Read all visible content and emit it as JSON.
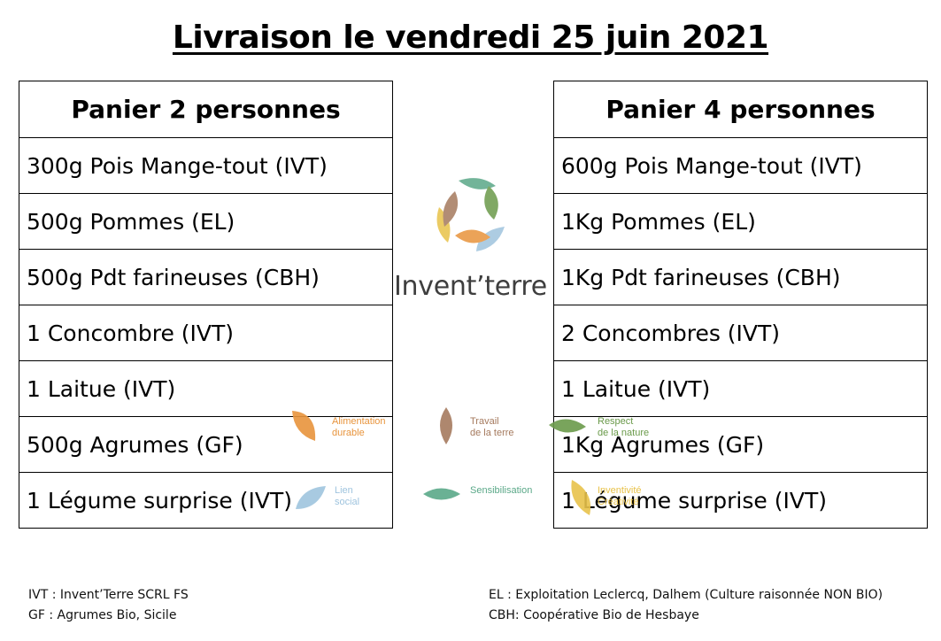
{
  "title": "Livraison le vendredi 25 juin 2021",
  "panier2": {
    "header": "Panier 2 personnes",
    "items": [
      "300g Pois Mange-tout (IVT)",
      "500g Pommes (EL)",
      "500g Pdt farineuses (CBH)",
      "1 Concombre (IVT)",
      "1 Laitue (IVT)",
      "500g Agrumes (GF)",
      "1 Légume surprise (IVT)"
    ]
  },
  "panier4": {
    "header": "Panier 4 personnes",
    "items": [
      "600g Pois Mange-tout (IVT)",
      "1Kg Pommes (EL)",
      "1Kg Pdt farineuses (CBH)",
      "2 Concombres (IVT)",
      "1 Laitue (IVT)",
      "1Kg Agrumes (GF)",
      "1 Légume surprise (IVT)"
    ]
  },
  "logo": {
    "name": "Invent’terre",
    "icon": "leaves-logo-icon"
  },
  "values": [
    {
      "line1": "Alimentation",
      "line2": "durable",
      "color": "#e8943c"
    },
    {
      "line1": "Travail",
      "line2": "de la terre",
      "color": "#a57a5e"
    },
    {
      "line1": "Respect",
      "line2": "de la nature",
      "color": "#6a9a4a"
    },
    {
      "line1": "Lien",
      "line2": "social",
      "color": "#9fc4de"
    },
    {
      "line1": "Sensibilisation",
      "line2": "",
      "color": "#5aa888"
    },
    {
      "line1": "Inventivité",
      "line2": "Créativité",
      "color": "#e8c24a"
    }
  ],
  "legend": {
    "ivt": "IVT : Invent’Terre SCRL FS",
    "gf": "GF : Agrumes Bio, Sicile",
    "el": "EL : Exploitation Leclercq, Dalhem (Culture raisonnée NON BIO)",
    "cbh": "CBH: Coopérative Bio de Hesbaye"
  }
}
